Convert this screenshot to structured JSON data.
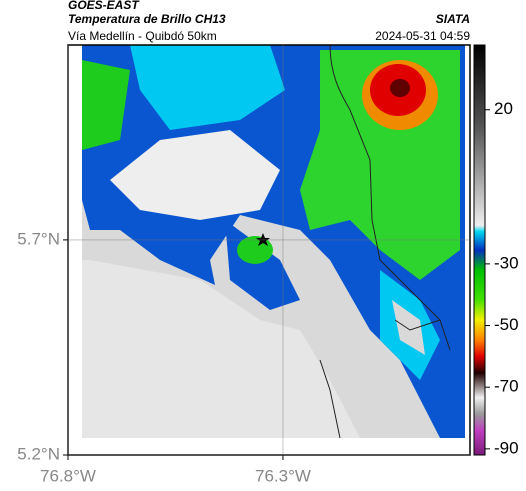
{
  "header": {
    "satellite": "GOES-EAST",
    "title": "Temperatura de Brillo CH13",
    "route": "Vía Medellín - Quibdó 50km",
    "source": "SIATA",
    "datetime": "2024-05-31 04:59"
  },
  "map": {
    "xlim": [
      -76.8,
      -75.865
    ],
    "ylim": [
      5.2,
      6.153
    ],
    "xticks": [
      {
        "value": -76.8,
        "label": "76.8°W"
      },
      {
        "value": -76.3,
        "label": "76.3°W"
      }
    ],
    "yticks": [
      {
        "value": 5.7,
        "label": "5.7°N"
      },
      {
        "value": 5.2,
        "label": "5.2°N"
      }
    ]
  },
  "colorbar": {
    "range": [
      41,
      -92
    ],
    "ticks": [
      20,
      -30,
      -50,
      -70,
      -90
    ]
  }
}
